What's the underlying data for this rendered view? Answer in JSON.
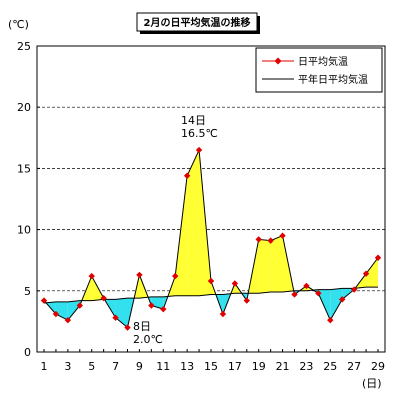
{
  "chart_data": {
    "type": "line",
    "title": "2月の日平均気温の推移",
    "y_unit_label": "(℃)",
    "x_unit_label": "(日)",
    "ylim": [
      0,
      25
    ],
    "y_ticks": [
      0,
      5,
      10,
      15,
      20,
      25
    ],
    "x_ticks": [
      1,
      3,
      5,
      7,
      9,
      11,
      13,
      15,
      17,
      19,
      21,
      23,
      25,
      27,
      29
    ],
    "grid": "horizontal dashed",
    "legend_position": "top-right",
    "x": [
      1,
      2,
      3,
      4,
      5,
      6,
      7,
      8,
      9,
      10,
      11,
      12,
      13,
      14,
      15,
      16,
      17,
      18,
      19,
      20,
      21,
      22,
      23,
      24,
      25,
      26,
      27,
      28,
      29
    ],
    "series": [
      {
        "name": "日平均気温",
        "color": "#e00000",
        "marker": "diamond",
        "values": [
          4.2,
          3.1,
          2.6,
          3.8,
          6.2,
          4.4,
          2.8,
          2.0,
          6.3,
          3.8,
          3.5,
          6.2,
          14.4,
          16.5,
          5.8,
          3.1,
          5.6,
          4.2,
          9.2,
          9.1,
          9.5,
          4.7,
          5.4,
          4.8,
          2.6,
          4.3,
          5.1,
          6.4,
          7.7
        ]
      },
      {
        "name": "平年日平均気温",
        "color": "#000000",
        "marker": "none",
        "values": [
          4.0,
          4.1,
          4.1,
          4.2,
          4.2,
          4.3,
          4.3,
          4.4,
          4.4,
          4.5,
          4.5,
          4.6,
          4.6,
          4.6,
          4.7,
          4.7,
          4.8,
          4.8,
          4.8,
          4.9,
          4.9,
          5.0,
          5.0,
          5.1,
          5.1,
          5.2,
          5.2,
          5.3,
          5.3
        ]
      }
    ],
    "fill_above_color": "#ffff33",
    "fill_below_color": "#33e0ee",
    "annotations": [
      {
        "label_day": "14日",
        "label_value": "16.5℃",
        "x": 14,
        "y": 16.5,
        "placement": "above"
      },
      {
        "label_day": "8日",
        "label_value": "2.0℃",
        "x": 8,
        "y": 2.0,
        "placement": "below"
      }
    ]
  }
}
